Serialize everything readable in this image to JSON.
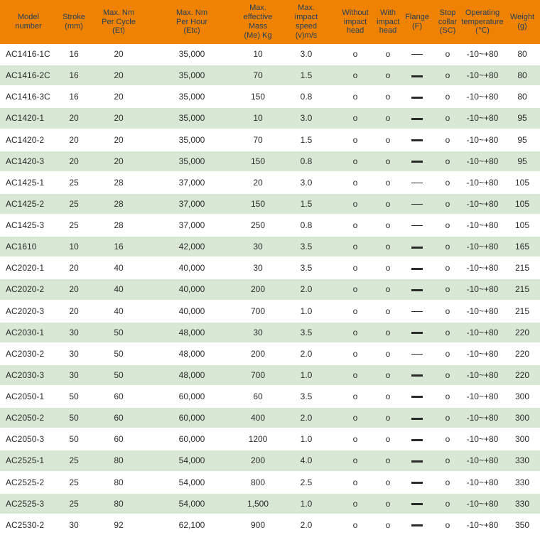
{
  "colors": {
    "header_bg": "#EF8200",
    "header_text": "#25405C",
    "row_alt_bg": "#D8E8D4",
    "row_bg": "#FFFFFF",
    "body_text": "#2B2B2B"
  },
  "table": {
    "columns": [
      {
        "id": "model",
        "label": "Model\nnumber"
      },
      {
        "id": "stroke",
        "label": "Stroke\n(mm)"
      },
      {
        "id": "et",
        "label": "Max. Nm\nPer Cycle\n(Et)"
      },
      {
        "id": "etc",
        "label": "Max. Nm\nPer Hour\n(Etc)"
      },
      {
        "id": "me",
        "label": "Max.\neffective\nMass\n(Me) Kg"
      },
      {
        "id": "v",
        "label": "Max.\nimpact\nspeed\n(v)m/s"
      },
      {
        "id": "without",
        "label": "Without\nimpact\nhead"
      },
      {
        "id": "with",
        "label": "With\nimpact\nhead"
      },
      {
        "id": "flange",
        "label": "Flange\n(F)"
      },
      {
        "id": "sc",
        "label": "Stop\ncollar\n(SC)"
      },
      {
        "id": "temp",
        "label": "Operating\ntemperature\n(℃)"
      },
      {
        "id": "weight",
        "label": "Weight\n(g)"
      }
    ],
    "rows": [
      {
        "model": "AC1416-1C",
        "stroke": "16",
        "et": "20",
        "etc": "35,000",
        "me": "10",
        "v": "3.0",
        "without": "o",
        "with": "o",
        "flange": "thin",
        "sc": "o",
        "temp": "-10~+80",
        "weight": "80"
      },
      {
        "model": "AC1416-2C",
        "stroke": "16",
        "et": "20",
        "etc": "35,000",
        "me": "70",
        "v": "1.5",
        "without": "o",
        "with": "o",
        "flange": "thick",
        "sc": "o",
        "temp": "-10~+80",
        "weight": "80"
      },
      {
        "model": "AC1416-3C",
        "stroke": "16",
        "et": "20",
        "etc": "35,000",
        "me": "150",
        "v": "0.8",
        "without": "o",
        "with": "o",
        "flange": "thick",
        "sc": "o",
        "temp": "-10~+80",
        "weight": "80"
      },
      {
        "model": "AC1420-1",
        "stroke": "20",
        "et": "20",
        "etc": "35,000",
        "me": "10",
        "v": "3.0",
        "without": "o",
        "with": "o",
        "flange": "thick",
        "sc": "o",
        "temp": "-10~+80",
        "weight": "95"
      },
      {
        "model": "AC1420-2",
        "stroke": "20",
        "et": "20",
        "etc": "35,000",
        "me": "70",
        "v": "1.5",
        "without": "o",
        "with": "o",
        "flange": "thick",
        "sc": "o",
        "temp": "-10~+80",
        "weight": "95"
      },
      {
        "model": "AC1420-3",
        "stroke": "20",
        "et": "20",
        "etc": "35,000",
        "me": "150",
        "v": "0.8",
        "without": "o",
        "with": "o",
        "flange": "thick",
        "sc": "o",
        "temp": "-10~+80",
        "weight": "95"
      },
      {
        "model": "AC1425-1",
        "stroke": "25",
        "et": "28",
        "etc": "37,000",
        "me": "20",
        "v": "3.0",
        "without": "o",
        "with": "o",
        "flange": "thin",
        "sc": "o",
        "temp": "-10~+80",
        "weight": "105"
      },
      {
        "model": "AC1425-2",
        "stroke": "25",
        "et": "28",
        "etc": "37,000",
        "me": "150",
        "v": "1.5",
        "without": "o",
        "with": "o",
        "flange": "thin",
        "sc": "o",
        "temp": "-10~+80",
        "weight": "105"
      },
      {
        "model": "AC1425-3",
        "stroke": "25",
        "et": "28",
        "etc": "37,000",
        "me": "250",
        "v": "0.8",
        "without": "o",
        "with": "o",
        "flange": "thin",
        "sc": "o",
        "temp": "-10~+80",
        "weight": "105"
      },
      {
        "model": "AC1610",
        "stroke": "10",
        "et": "16",
        "etc": "42,000",
        "me": "30",
        "v": "3.5",
        "without": "o",
        "with": "o",
        "flange": "thick",
        "sc": "o",
        "temp": "-10~+80",
        "weight": "165"
      },
      {
        "model": "AC2020-1",
        "stroke": "20",
        "et": "40",
        "etc": "40,000",
        "me": "30",
        "v": "3.5",
        "without": "o",
        "with": "o",
        "flange": "thick",
        "sc": "o",
        "temp": "-10~+80",
        "weight": "215"
      },
      {
        "model": "AC2020-2",
        "stroke": "20",
        "et": "40",
        "etc": "40,000",
        "me": "200",
        "v": "2.0",
        "without": "o",
        "with": "o",
        "flange": "thick",
        "sc": "o",
        "temp": "-10~+80",
        "weight": "215"
      },
      {
        "model": "AC2020-3",
        "stroke": "20",
        "et": "40",
        "etc": "40,000",
        "me": "700",
        "v": "1.0",
        "without": "o",
        "with": "o",
        "flange": "thin",
        "sc": "o",
        "temp": "-10~+80",
        "weight": "215"
      },
      {
        "model": "AC2030-1",
        "stroke": "30",
        "et": "50",
        "etc": "48,000",
        "me": "30",
        "v": "3.5",
        "without": "o",
        "with": "o",
        "flange": "thick",
        "sc": "o",
        "temp": "-10~+80",
        "weight": "220"
      },
      {
        "model": "AC2030-2",
        "stroke": "30",
        "et": "50",
        "etc": "48,000",
        "me": "200",
        "v": "2.0",
        "without": "o",
        "with": "o",
        "flange": "thin",
        "sc": "o",
        "temp": "-10~+80",
        "weight": "220"
      },
      {
        "model": "AC2030-3",
        "stroke": "30",
        "et": "50",
        "etc": "48,000",
        "me": "700",
        "v": "1.0",
        "without": "o",
        "with": "o",
        "flange": "thick",
        "sc": "o",
        "temp": "-10~+80",
        "weight": "220"
      },
      {
        "model": "AC2050-1",
        "stroke": "50",
        "et": "60",
        "etc": "60,000",
        "me": "60",
        "v": "3.5",
        "without": "o",
        "with": "o",
        "flange": "thick",
        "sc": "o",
        "temp": "-10~+80",
        "weight": "300"
      },
      {
        "model": "AC2050-2",
        "stroke": "50",
        "et": "60",
        "etc": "60,000",
        "me": "400",
        "v": "2.0",
        "without": "o",
        "with": "o",
        "flange": "thick",
        "sc": "o",
        "temp": "-10~+80",
        "weight": "300"
      },
      {
        "model": "AC2050-3",
        "stroke": "50",
        "et": "60",
        "etc": "60,000",
        "me": "1200",
        "v": "1.0",
        "without": "o",
        "with": "o",
        "flange": "thick",
        "sc": "o",
        "temp": "-10~+80",
        "weight": "300"
      },
      {
        "model": "AC2525-1",
        "stroke": "25",
        "et": "80",
        "etc": "54,000",
        "me": "200",
        "v": "4.0",
        "without": "o",
        "with": "o",
        "flange": "thick",
        "sc": "o",
        "temp": "-10~+80",
        "weight": "330"
      },
      {
        "model": "AC2525-2",
        "stroke": "25",
        "et": "80",
        "etc": "54,000",
        "me": "800",
        "v": "2.5",
        "without": "o",
        "with": "o",
        "flange": "thick",
        "sc": "o",
        "temp": "-10~+80",
        "weight": "330"
      },
      {
        "model": "AC2525-3",
        "stroke": "25",
        "et": "80",
        "etc": "54,000",
        "me": "1,500",
        "v": "1.0",
        "without": "o",
        "with": "o",
        "flange": "thick",
        "sc": "o",
        "temp": "-10~+80",
        "weight": "330"
      },
      {
        "model": "AC2530-2",
        "stroke": "30",
        "et": "92",
        "etc": "62,100",
        "me": "900",
        "v": "2.0",
        "without": "o",
        "with": "o",
        "flange": "thick",
        "sc": "o",
        "temp": "-10~+80",
        "weight": "350"
      }
    ]
  }
}
